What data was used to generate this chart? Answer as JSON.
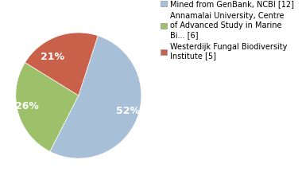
{
  "slices": [
    52,
    26,
    21
  ],
  "colors": [
    "#a8bfd8",
    "#9dc06b",
    "#c9614a"
  ],
  "labels": [
    "52%",
    "26%",
    "21%"
  ],
  "legend_labels": [
    "Mined from GenBank, NCBI [12]",
    "Annamalai University, Centre\nof Advanced Study in Marine\nBi... [6]",
    "Westerdijk Fungal Biodiversity\nInstitute [5]"
  ],
  "startangle": 72,
  "text_color": "white",
  "label_fontsize": 9,
  "legend_fontsize": 7.0,
  "background_color": "#ffffff"
}
